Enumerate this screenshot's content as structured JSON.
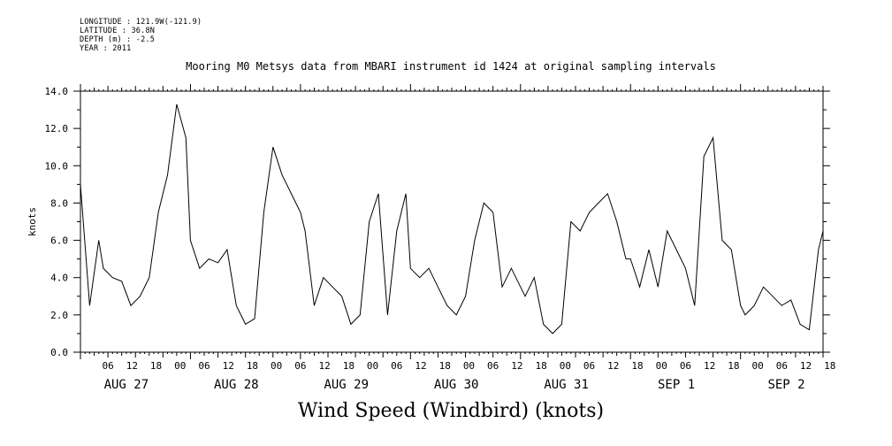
{
  "header": {
    "longitude": "LONGITUDE : 121.9W(-121.9)",
    "latitude": "LATITUDE : 36.8N",
    "depth": "DEPTH (m) : -2.5",
    "year": "YEAR : 2011"
  },
  "chart_data": {
    "type": "line",
    "title": "Mooring M0 Metsys data from MBARI instrument id 1424 at original sampling intervals",
    "footer_label": "Wind Speed (Windbird) (knots)",
    "ylabel": "knots",
    "ylim": [
      0,
      14
    ],
    "yticks": [
      "0.0",
      "2.0",
      "4.0",
      "6.0",
      "8.0",
      "10.0",
      "12.0",
      "14.0"
    ],
    "xlim_hours": [
      0,
      162
    ],
    "hour_tick_labels": [
      "06",
      "12",
      "18",
      "00",
      "06",
      "12",
      "18",
      "00",
      "06",
      "12",
      "18",
      "00",
      "06",
      "12",
      "18",
      "00",
      "06",
      "12",
      "18",
      "00",
      "06",
      "12",
      "18",
      "00",
      "06",
      "12",
      "18",
      "00",
      "06",
      "12",
      "18"
    ],
    "day_labels": [
      "AUG 27",
      "AUG 28",
      "AUG 29",
      "AUG 30",
      "AUG 31",
      "SEP  1",
      "SEP  2"
    ],
    "grid": false,
    "series": [
      {
        "x_hours": [
          0,
          2,
          4,
          5,
          7,
          9,
          11,
          13,
          15,
          17,
          19,
          21,
          23,
          24,
          26,
          28,
          30,
          32,
          34,
          36,
          38,
          40,
          42,
          44,
          46,
          48,
          49,
          51,
          53,
          55,
          57,
          59,
          61,
          63,
          65,
          67,
          69,
          71,
          72,
          74,
          76,
          78,
          80,
          82,
          84,
          86,
          88,
          90,
          92,
          94,
          96,
          97,
          99,
          101,
          103,
          105,
          107,
          109,
          111,
          113,
          115,
          117,
          119,
          120,
          122,
          124,
          126,
          128,
          130,
          132,
          134,
          136,
          138,
          140,
          142,
          144,
          145,
          147,
          149,
          151,
          153,
          155,
          157,
          159,
          161,
          162
        ],
        "values": [
          9.0,
          2.5,
          6.0,
          4.5,
          4.0,
          3.8,
          2.5,
          3.0,
          4.0,
          7.5,
          9.5,
          13.3,
          11.5,
          6.0,
          4.5,
          5.0,
          4.8,
          5.5,
          2.5,
          1.5,
          1.8,
          7.5,
          11.0,
          9.5,
          8.5,
          7.5,
          6.5,
          2.5,
          4.0,
          3.5,
          3.0,
          1.5,
          2.0,
          7.0,
          8.5,
          2.0,
          6.5,
          8.5,
          4.5,
          4.0,
          4.5,
          3.5,
          2.5,
          2.0,
          3.0,
          6.0,
          8.0,
          7.5,
          3.5,
          4.5,
          3.5,
          3.0,
          4.0,
          1.5,
          1.0,
          1.5,
          7.0,
          6.5,
          7.5,
          8.0,
          8.5,
          7.0,
          5.0,
          5.0,
          3.5,
          5.5,
          3.5,
          6.5,
          5.5,
          4.5,
          2.5,
          10.5,
          11.5,
          6.0,
          5.5,
          2.5,
          2.0,
          2.5,
          3.5,
          3.0,
          2.5,
          2.8,
          1.5,
          1.2,
          5.5,
          6.5
        ]
      }
    ]
  }
}
